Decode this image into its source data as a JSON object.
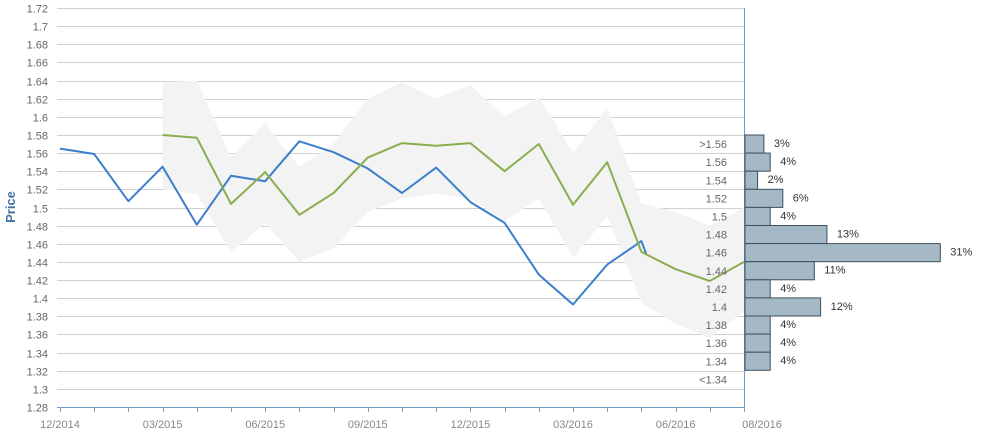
{
  "chart_data": {
    "type": "line",
    "ylabel": "Price",
    "ylim": [
      1.28,
      1.72
    ],
    "ytick_step": 0.02,
    "yticks": [
      "1.28",
      "1.3",
      "1.32",
      "1.34",
      "1.36",
      "1.38",
      "1.4",
      "1.42",
      "1.44",
      "1.46",
      "1.48",
      "1.5",
      "1.52",
      "1.54",
      "1.56",
      "1.58",
      "1.6",
      "1.62",
      "1.64",
      "1.66",
      "1.68",
      "1.7",
      "1.72"
    ],
    "xticks": [
      {
        "label": "12/2014",
        "month": 0
      },
      {
        "label": "03/2015",
        "month": 3
      },
      {
        "label": "06/2015",
        "month": 6
      },
      {
        "label": "09/2015",
        "month": 9
      },
      {
        "label": "12/2015",
        "month": 12
      },
      {
        "label": "03/2016",
        "month": 15
      },
      {
        "label": "06/2016",
        "month": 18
      },
      {
        "label": "08/2016",
        "month": 20
      }
    ],
    "colors": {
      "actual": "#3B7FCC",
      "forecast": "#8AAE4F",
      "band": "#F3F3F3",
      "hist_bar": "#A5B8C6",
      "hist_border": "#3D4F5C",
      "grid": "#D0D0D0",
      "axis": "#6E9BC8"
    },
    "series": [
      {
        "key": "actual",
        "points": [
          [
            0,
            1.565
          ],
          [
            1,
            1.559
          ],
          [
            2,
            1.507
          ],
          [
            3,
            1.545
          ],
          [
            4,
            1.481
          ],
          [
            5,
            1.535
          ],
          [
            6,
            1.529
          ],
          [
            7,
            1.573
          ],
          [
            8,
            1.561
          ],
          [
            9,
            1.543
          ],
          [
            10,
            1.516
          ],
          [
            11,
            1.544
          ],
          [
            12,
            1.506
          ],
          [
            13,
            1.483
          ],
          [
            14,
            1.426
          ],
          [
            15,
            1.393
          ],
          [
            16,
            1.437
          ],
          [
            17,
            1.463
          ],
          [
            17.15,
            1.448
          ]
        ]
      },
      {
        "key": "forecast",
        "points": [
          [
            3,
            1.58
          ],
          [
            4,
            1.577
          ],
          [
            5,
            1.504
          ],
          [
            6,
            1.539
          ],
          [
            7,
            1.492
          ],
          [
            8,
            1.516
          ],
          [
            9,
            1.555
          ],
          [
            10,
            1.571
          ],
          [
            11,
            1.568
          ],
          [
            12,
            1.571
          ],
          [
            13,
            1.54
          ],
          [
            14,
            1.57
          ],
          [
            15,
            1.503
          ],
          [
            16,
            1.55
          ],
          [
            17,
            1.451
          ],
          [
            18,
            1.432
          ],
          [
            19,
            1.419
          ],
          [
            20,
            1.44
          ]
        ]
      }
    ],
    "band": {
      "upper": [
        [
          3,
          1.638
        ],
        [
          4,
          1.64
        ],
        [
          5,
          1.555
        ],
        [
          6,
          1.593
        ],
        [
          7,
          1.545
        ],
        [
          8,
          1.57
        ],
        [
          9,
          1.62
        ],
        [
          10,
          1.638
        ],
        [
          11,
          1.62
        ],
        [
          12,
          1.635
        ],
        [
          13,
          1.6
        ],
        [
          14,
          1.622
        ],
        [
          15,
          1.56
        ],
        [
          16,
          1.61
        ],
        [
          17,
          1.505
        ],
        [
          18,
          1.495
        ],
        [
          19,
          1.48
        ],
        [
          20,
          1.5
        ]
      ],
      "lower": [
        [
          3,
          1.52
        ],
        [
          4,
          1.515
        ],
        [
          5,
          1.45
        ],
        [
          6,
          1.483
        ],
        [
          7,
          1.44
        ],
        [
          8,
          1.455
        ],
        [
          9,
          1.495
        ],
        [
          10,
          1.51
        ],
        [
          11,
          1.515
        ],
        [
          12,
          1.51
        ],
        [
          13,
          1.485
        ],
        [
          14,
          1.51
        ],
        [
          15,
          1.445
        ],
        [
          16,
          1.49
        ],
        [
          17,
          1.395
        ],
        [
          18,
          1.372
        ],
        [
          19,
          1.356
        ],
        [
          20,
          1.385
        ]
      ]
    },
    "histogram": [
      {
        "label": ">1.56",
        "pct": 3,
        "text": "3%"
      },
      {
        "label": "1.56",
        "pct": 4,
        "text": "4%"
      },
      {
        "label": "1.54",
        "pct": 2,
        "text": "2%"
      },
      {
        "label": "1.52",
        "pct": 6,
        "text": "6%"
      },
      {
        "label": "1.5",
        "pct": 4,
        "text": "4%"
      },
      {
        "label": "1.48",
        "pct": 13,
        "text": "13%"
      },
      {
        "label": "1.46",
        "pct": 31,
        "text": "31%"
      },
      {
        "label": "1.44",
        "pct": 11,
        "text": "11%"
      },
      {
        "label": "1.42",
        "pct": 4,
        "text": "4%"
      },
      {
        "label": "1.4",
        "pct": 12,
        "text": "12%"
      },
      {
        "label": "1.38",
        "pct": 4,
        "text": "4%"
      },
      {
        "label": "1.36",
        "pct": 4,
        "text": "4%"
      },
      {
        "label": "1.34",
        "pct": 4,
        "text": "4%"
      },
      {
        "label": "<1.34",
        "pct": 0,
        "text": ""
      }
    ]
  }
}
